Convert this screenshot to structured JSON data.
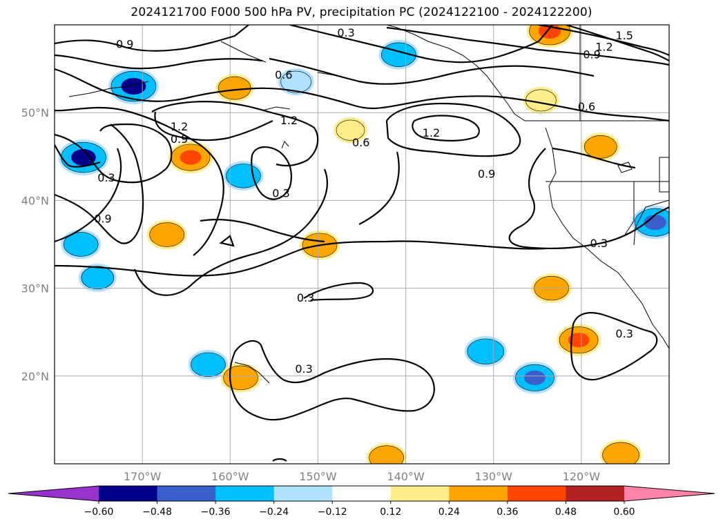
{
  "title": "2024121700 F000 500 hPa PV, precipitation PC (2024122100 - 2024122200)",
  "chart_data": {
    "type": "heatmap",
    "title": "2024121700 F000 500 hPa PV, precipitation PC (2024122100 - 2024122200)",
    "lon_range": [
      -180,
      -110
    ],
    "lat_range": [
      10,
      60
    ],
    "lon_ticks": [
      -170,
      -160,
      -150,
      -140,
      -130,
      -120
    ],
    "lon_tick_labels": [
      "170°W",
      "160°W",
      "150°W",
      "140°W",
      "130°W",
      "120°W"
    ],
    "lat_ticks": [
      20,
      30,
      40,
      50
    ],
    "lat_tick_labels": [
      "20°N",
      "30°N",
      "40°N",
      "50°N"
    ],
    "grid": true,
    "contour_levels": [
      0.3,
      0.6,
      0.9,
      1.2,
      1.5
    ],
    "contour_labels": [
      {
        "text": "0.9",
        "lon": -172,
        "lat": 57.8
      },
      {
        "text": "0.3",
        "lon": -146.8,
        "lat": 59.1
      },
      {
        "text": "1.5",
        "lon": -115.1,
        "lat": 58.8
      },
      {
        "text": "1.2",
        "lon": -117.4,
        "lat": 57.5
      },
      {
        "text": "0.9",
        "lon": -118.8,
        "lat": 56.6
      },
      {
        "text": "0.6",
        "lon": -153.9,
        "lat": 54.3
      },
      {
        "text": "0.6",
        "lon": -119.4,
        "lat": 50.7
      },
      {
        "text": "1.2",
        "lon": -153.3,
        "lat": 49.1
      },
      {
        "text": "1.2",
        "lon": -165.8,
        "lat": 48.4
      },
      {
        "text": "0.9",
        "lon": -165.8,
        "lat": 47.0
      },
      {
        "text": "0.6",
        "lon": -145.1,
        "lat": 46.6
      },
      {
        "text": "1.2",
        "lon": -137.1,
        "lat": 47.7
      },
      {
        "text": "0.9",
        "lon": -130.8,
        "lat": 43.0
      },
      {
        "text": "0.3",
        "lon": -174.1,
        "lat": 42.6
      },
      {
        "text": "0.3",
        "lon": -154.2,
        "lat": 40.8
      },
      {
        "text": "0.9",
        "lon": -174.5,
        "lat": 37.9
      },
      {
        "text": "0.3",
        "lon": -118.0,
        "lat": 35.1
      },
      {
        "text": "0.3",
        "lon": -151.4,
        "lat": 28.9
      },
      {
        "text": "0.3",
        "lon": -115.1,
        "lat": 24.8
      },
      {
        "text": "0.3",
        "lon": -151.6,
        "lat": 20.8
      }
    ],
    "precip_levels": [
      -0.6,
      -0.48,
      -0.36,
      -0.24,
      -0.12,
      0.12,
      0.24,
      0.36,
      0.48,
      0.6
    ],
    "precip_cells": [
      {
        "lon": -171,
        "lat": 53,
        "value": -0.55
      },
      {
        "lon": -164.5,
        "lat": 44.9,
        "value": 0.4
      },
      {
        "lon": -176.7,
        "lat": 44.9,
        "value": -0.55
      },
      {
        "lon": -158.5,
        "lat": 42.8,
        "value": -0.3
      },
      {
        "lon": -152.5,
        "lat": 53.5,
        "value": -0.2
      },
      {
        "lon": -146.3,
        "lat": 48.0,
        "value": 0.15
      },
      {
        "lon": -140.8,
        "lat": 56.6,
        "value": -0.3
      },
      {
        "lon": -159.5,
        "lat": 52.8,
        "value": 0.25
      },
      {
        "lon": -149.8,
        "lat": 34.9,
        "value": 0.3
      },
      {
        "lon": -167.2,
        "lat": 36.1,
        "value": 0.3
      },
      {
        "lon": -177.0,
        "lat": 35.0,
        "value": -0.3
      },
      {
        "lon": -175.1,
        "lat": 31.2,
        "value": -0.25
      },
      {
        "lon": -162.5,
        "lat": 21.3,
        "value": -0.3
      },
      {
        "lon": -158.8,
        "lat": 19.8,
        "value": 0.3
      },
      {
        "lon": -123.4,
        "lat": 30.0,
        "value": 0.3
      },
      {
        "lon": -125.3,
        "lat": 19.8,
        "value": -0.4
      },
      {
        "lon": -130.9,
        "lat": 22.8,
        "value": -0.35
      },
      {
        "lon": -120.3,
        "lat": 24.1,
        "value": 0.4
      },
      {
        "lon": -123.6,
        "lat": 59.3,
        "value": 0.45
      },
      {
        "lon": -124.6,
        "lat": 51.4,
        "value": 0.2
      },
      {
        "lon": -111.6,
        "lat": 37.5,
        "value": -0.45
      },
      {
        "lon": -115.5,
        "lat": 11.0,
        "value": 0.35
      },
      {
        "lon": -142.2,
        "lat": 10.7,
        "value": 0.3
      },
      {
        "lon": -117.8,
        "lat": 46.1,
        "value": 0.25
      }
    ],
    "colorbar": {
      "tick_labels": [
        "−0.60",
        "−0.48",
        "−0.36",
        "−0.24",
        "−0.12",
        "0.12",
        "0.24",
        "0.36",
        "0.48",
        "0.60"
      ],
      "colors": [
        "#9932cc",
        "#00008b",
        "#3a5fcd",
        "#00bfff",
        "#b0e2ff",
        "#ffffff",
        "#ffec8b",
        "#ffa500",
        "#ff4500",
        "#b22222",
        "#ff83a8"
      ]
    }
  }
}
